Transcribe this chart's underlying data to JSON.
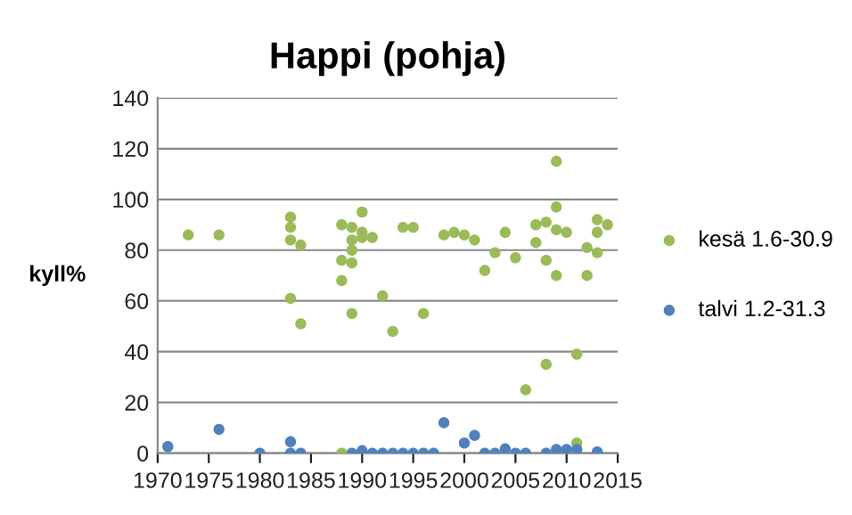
{
  "chart_data": {
    "type": "scatter",
    "title": "Happi (pohja)",
    "ylabel": "kyll%",
    "xlim": [
      1970,
      2015
    ],
    "xticks": [
      1970,
      1975,
      1980,
      1985,
      1990,
      1995,
      2000,
      2005,
      2010,
      2015
    ],
    "ylim": [
      0,
      140
    ],
    "yticks": [
      0,
      20,
      40,
      60,
      80,
      100,
      120,
      140
    ],
    "grid": "y",
    "legend": "right",
    "marker": "circle",
    "series": [
      {
        "name": "kesä 1.6-30.9",
        "color": "#9bbb59",
        "x": [
          1973,
          1976,
          1983,
          1983,
          1983,
          1983,
          1984,
          1984,
          1988,
          1988,
          1988,
          1988,
          1989,
          1989,
          1989,
          1989,
          1989,
          1990,
          1990,
          1990,
          1991,
          1992,
          1993,
          1994,
          1995,
          1996,
          1998,
          1999,
          2000,
          2001,
          2002,
          2003,
          2004,
          2005,
          2006,
          2007,
          2007,
          2008,
          2008,
          2008,
          2009,
          2009,
          2009,
          2009,
          2010,
          2011,
          2011,
          2012,
          2012,
          2013,
          2013,
          2013,
          2014
        ],
        "values": [
          86,
          86,
          93,
          89,
          84,
          61,
          82,
          51,
          90,
          76,
          68,
          0,
          89,
          84,
          80,
          75,
          55,
          95,
          87,
          85,
          85,
          62,
          48,
          89,
          89,
          55,
          86,
          87,
          86,
          84,
          72,
          79,
          87,
          77,
          25,
          90,
          83,
          91,
          76,
          35,
          115,
          97,
          88,
          70,
          87,
          39,
          4,
          81,
          70,
          92,
          87,
          79,
          90
        ]
      },
      {
        "name": "talvi 1.2-31.3",
        "color": "#4f81bd",
        "x": [
          1971,
          1976,
          1980,
          1983,
          1983,
          1984,
          1989,
          1990,
          1991,
          1992,
          1993,
          1994,
          1995,
          1996,
          1997,
          1998,
          2000,
          2001,
          2002,
          2003,
          2004,
          2005,
          2006,
          2008,
          2009,
          2010,
          2011,
          2013
        ],
        "values": [
          2.6,
          9.4,
          0,
          4.5,
          0,
          0,
          0,
          1,
          0,
          0,
          0,
          0,
          0,
          0,
          0,
          12,
          4,
          7,
          0,
          0,
          1.7,
          0,
          0,
          0,
          1.5,
          1.5,
          1.5,
          0.5
        ]
      }
    ]
  }
}
